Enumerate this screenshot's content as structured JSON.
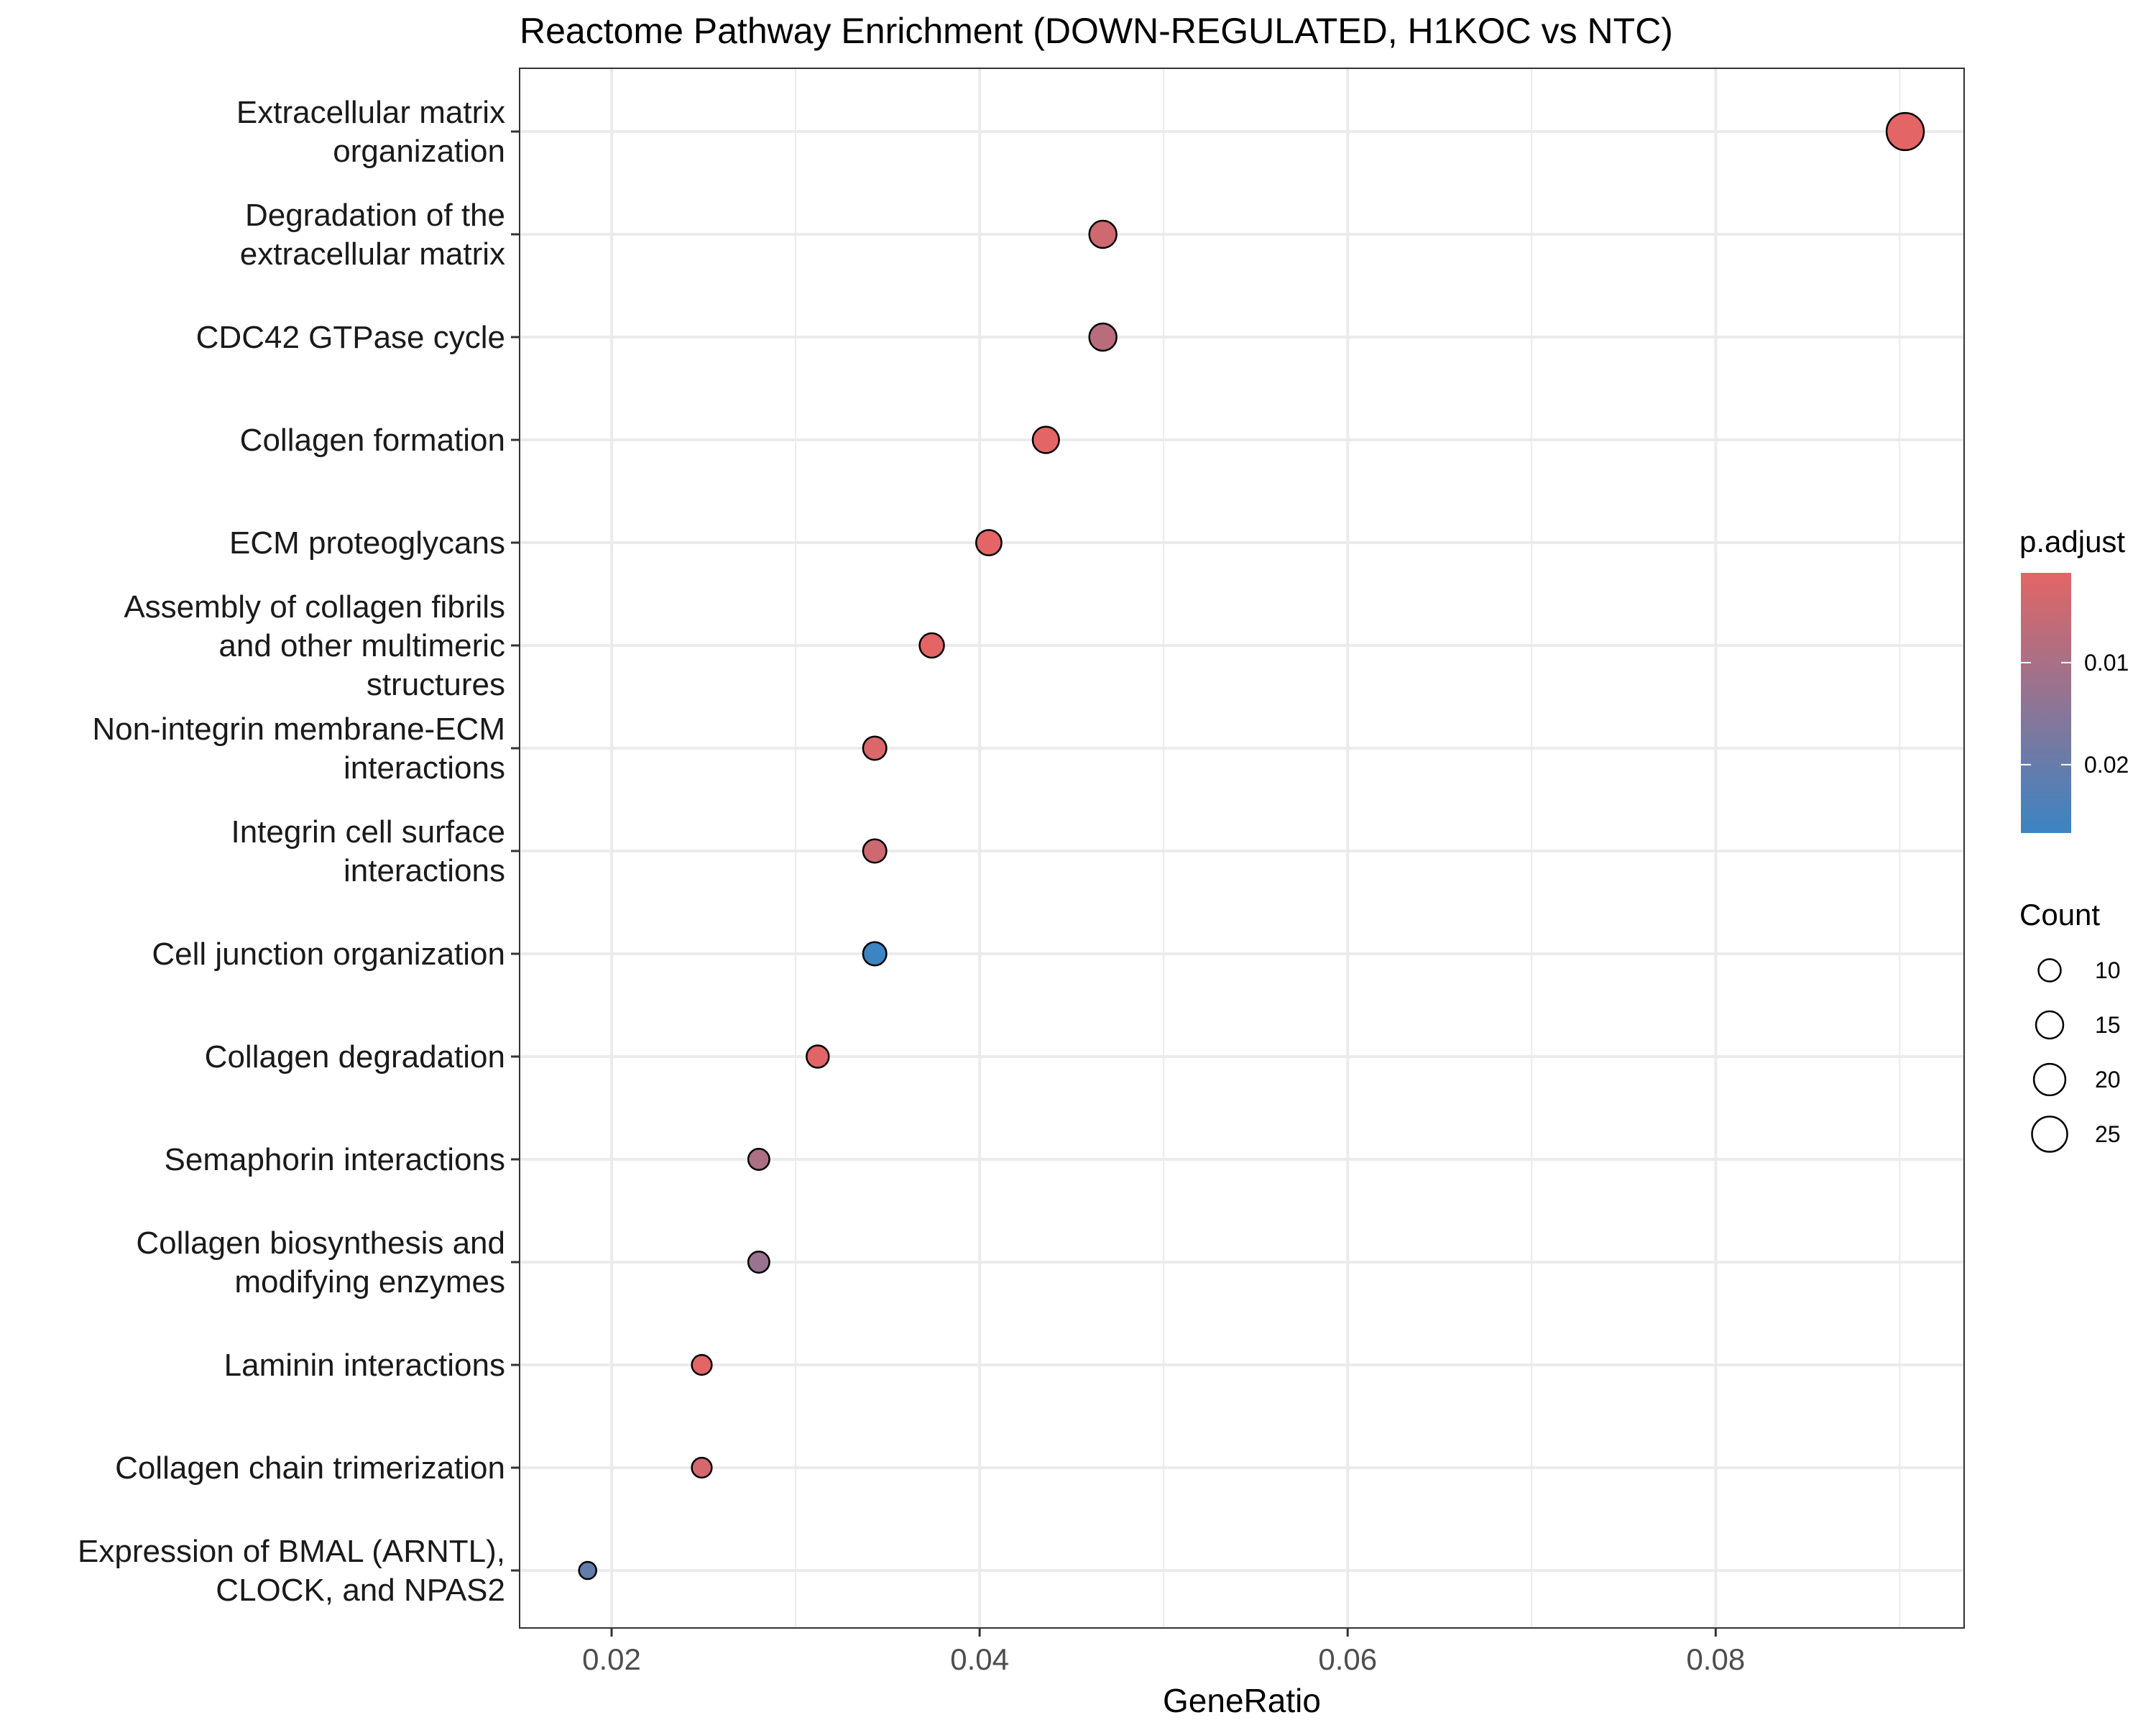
{
  "chart_data": {
    "type": "scatter",
    "title": "Reactome Pathway Enrichment (DOWN-REGULATED, H1KOC vs NTC)",
    "xlabel": "GeneRatio",
    "ylabel": "",
    "xlim": [
      0.015,
      0.0935
    ],
    "x_ticks": [
      0.02,
      0.04,
      0.06,
      0.08
    ],
    "x_tick_labels": [
      "0.02",
      "0.04",
      "0.06",
      "0.08"
    ],
    "grid": true,
    "points": [
      {
        "label": [
          "Extracellular matrix",
          "organization"
        ],
        "x": 0.0903,
        "count": 28,
        "p_adjust": 0.0012
      },
      {
        "label": [
          "Degradation of the",
          "extracellular matrix"
        ],
        "x": 0.0467,
        "count": 15,
        "p_adjust": 0.0043
      },
      {
        "label": [
          "CDC42 GTPase cycle"
        ],
        "x": 0.0467,
        "count": 15,
        "p_adjust": 0.0075
      },
      {
        "label": [
          "Collagen formation"
        ],
        "x": 0.0436,
        "count": 14,
        "p_adjust": 0.0012
      },
      {
        "label": [
          "ECM proteoglycans"
        ],
        "x": 0.0405,
        "count": 13,
        "p_adjust": 0.0012
      },
      {
        "label": [
          "Assembly of collagen fibrils",
          "and other multimeric",
          "structures"
        ],
        "x": 0.0374,
        "count": 12,
        "p_adjust": 0.0012
      },
      {
        "label": [
          "Non-integrin membrane-ECM",
          "interactions"
        ],
        "x": 0.0343,
        "count": 11,
        "p_adjust": 0.0025
      },
      {
        "label": [
          "Integrin cell surface",
          "interactions"
        ],
        "x": 0.0343,
        "count": 11,
        "p_adjust": 0.0045
      },
      {
        "label": [
          "Cell junction organization"
        ],
        "x": 0.0343,
        "count": 11,
        "p_adjust": 0.0265
      },
      {
        "label": [
          "Collagen degradation"
        ],
        "x": 0.0312,
        "count": 10,
        "p_adjust": 0.0015
      },
      {
        "label": [
          "Semaphorin interactions"
        ],
        "x": 0.028,
        "count": 9,
        "p_adjust": 0.0095
      },
      {
        "label": [
          "Collagen biosynthesis and",
          "modifying enzymes"
        ],
        "x": 0.028,
        "count": 9,
        "p_adjust": 0.0125
      },
      {
        "label": [
          "Laminin interactions"
        ],
        "x": 0.0249,
        "count": 8,
        "p_adjust": 0.0012
      },
      {
        "label": [
          "Collagen chain trimerization"
        ],
        "x": 0.0249,
        "count": 8,
        "p_adjust": 0.0035
      },
      {
        "label": [
          "Expression of BMAL (ARNTL),",
          "CLOCK, and NPAS2"
        ],
        "x": 0.0187,
        "count": 6,
        "p_adjust": 0.0205
      }
    ],
    "color_legend": {
      "title": "p.adjust",
      "range": [
        0.0012,
        0.0267
      ],
      "low_color": "#E36565",
      "high_color": "#3B84C3",
      "ticks": [
        0.01,
        0.02
      ],
      "tick_labels": [
        "0.01",
        "0.02"
      ]
    },
    "size_legend": {
      "title": "Count",
      "range": [
        6,
        28
      ],
      "values": [
        10,
        15,
        20,
        25
      ],
      "labels": [
        "10",
        "15",
        "20",
        "25"
      ]
    },
    "legend_placement": "right"
  }
}
